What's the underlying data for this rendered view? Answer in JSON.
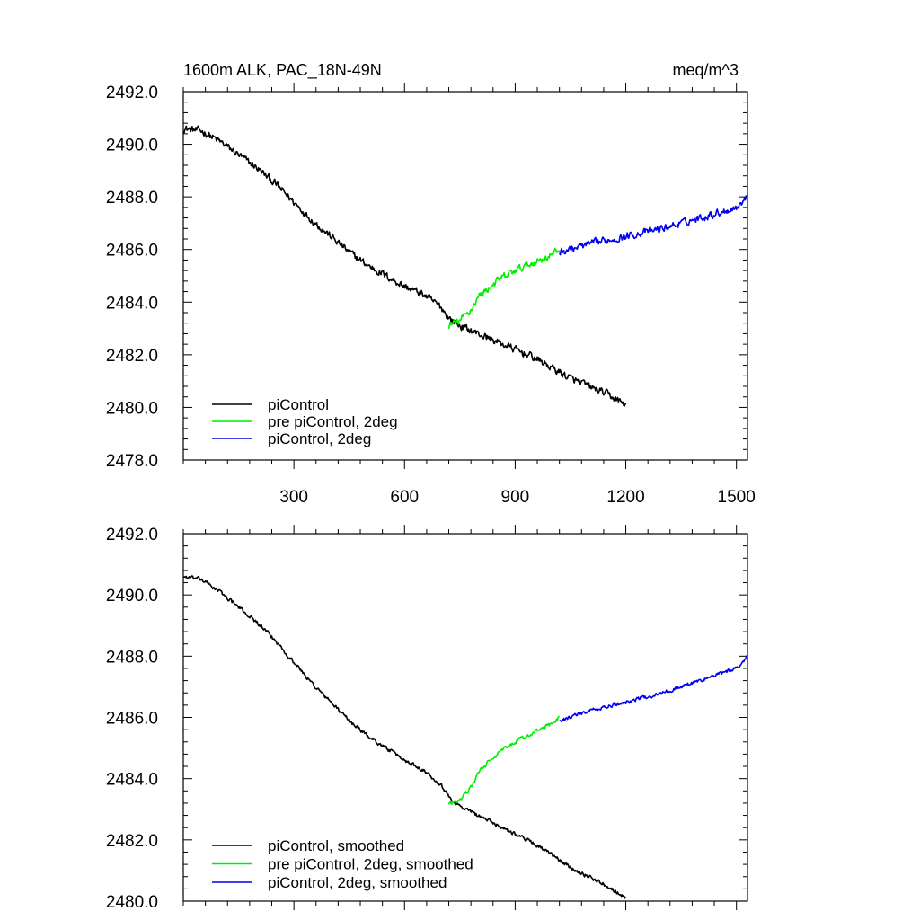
{
  "chart_data": [
    {
      "type": "line",
      "title": "1600m ALK, PAC_18N-49N",
      "units": "meq/m^3",
      "xlim": [
        0,
        1530
      ],
      "ylim": [
        2478,
        2492
      ],
      "x_ticks": [
        300,
        600,
        900,
        1200,
        1500
      ],
      "y_ticks": [
        2478,
        2480,
        2482,
        2484,
        2486,
        2488,
        2490,
        2492
      ],
      "y_tick_labels": [
        "2478.0",
        "2480.0",
        "2482.0",
        "2484.0",
        "2486.0",
        "2488.0",
        "2490.0",
        "2492.0"
      ],
      "x_tick_labels": [
        "300",
        "600",
        "900",
        "1200",
        "1500"
      ],
      "legend_position": "bottom-left",
      "noise": 0.22,
      "series": [
        {
          "name": "piControl",
          "color": "#000000",
          "x": [
            0,
            50,
            100,
            150,
            200,
            250,
            300,
            350,
            400,
            450,
            500,
            550,
            600,
            650,
            700,
            720,
            750,
            800,
            850,
            900,
            950,
            1000,
            1050,
            1100,
            1150,
            1200
          ],
          "y": [
            2490.6,
            2490.5,
            2490.1,
            2489.6,
            2489.1,
            2488.5,
            2487.8,
            2487.1,
            2486.5,
            2485.9,
            2485.4,
            2485.0,
            2484.6,
            2484.3,
            2483.8,
            2483.4,
            2483.1,
            2482.8,
            2482.5,
            2482.2,
            2481.9,
            2481.5,
            2481.1,
            2480.8,
            2480.5,
            2480.1
          ]
        },
        {
          "name": "pre piControl, 2deg",
          "color": "#00ee00",
          "x": [
            720,
            750,
            780,
            800,
            850,
            900,
            950,
            1000,
            1020
          ],
          "y": [
            2483.1,
            2483.3,
            2483.7,
            2484.2,
            2484.8,
            2485.2,
            2485.5,
            2485.8,
            2486.0
          ]
        },
        {
          "name": "piControl, 2deg",
          "color": "#0000ee",
          "x": [
            1020,
            1100,
            1200,
            1300,
            1400,
            1500,
            1530
          ],
          "y": [
            2485.9,
            2486.2,
            2486.5,
            2486.8,
            2487.2,
            2487.6,
            2488.0
          ]
        }
      ]
    },
    {
      "type": "line",
      "xlim": [
        0,
        1530
      ],
      "ylim": [
        2480,
        2492
      ],
      "x_ticks": [
        300,
        600,
        900,
        1200,
        1500
      ],
      "y_ticks": [
        2480,
        2482,
        2484,
        2486,
        2488,
        2490,
        2492
      ],
      "y_tick_labels": [
        "2480.0",
        "2482.0",
        "2484.0",
        "2486.0",
        "2488.0",
        "2490.0",
        "2492.0"
      ],
      "legend_position": "bottom-left",
      "noise": 0.1,
      "series": [
        {
          "name": "piControl, smoothed",
          "color": "#000000",
          "x": [
            0,
            50,
            100,
            150,
            200,
            250,
            300,
            350,
            400,
            450,
            500,
            550,
            600,
            650,
            700,
            720,
            750,
            800,
            850,
            900,
            950,
            1000,
            1050,
            1100,
            1150,
            1200
          ],
          "y": [
            2490.6,
            2490.5,
            2490.1,
            2489.6,
            2489.1,
            2488.5,
            2487.8,
            2487.1,
            2486.5,
            2485.9,
            2485.4,
            2485.0,
            2484.6,
            2484.3,
            2483.8,
            2483.4,
            2483.1,
            2482.8,
            2482.5,
            2482.2,
            2481.9,
            2481.5,
            2481.1,
            2480.8,
            2480.5,
            2480.1
          ]
        },
        {
          "name": "pre piControl, 2deg, smoothed",
          "color": "#00ee00",
          "x": [
            720,
            750,
            780,
            800,
            850,
            900,
            950,
            1000,
            1020
          ],
          "y": [
            2483.2,
            2483.3,
            2483.7,
            2484.2,
            2484.8,
            2485.2,
            2485.5,
            2485.8,
            2486.0
          ]
        },
        {
          "name": "piControl, 2deg, smoothed",
          "color": "#0000ee",
          "x": [
            1020,
            1100,
            1200,
            1300,
            1400,
            1500,
            1530
          ],
          "y": [
            2485.9,
            2486.2,
            2486.5,
            2486.8,
            2487.2,
            2487.6,
            2488.0
          ]
        }
      ]
    }
  ]
}
